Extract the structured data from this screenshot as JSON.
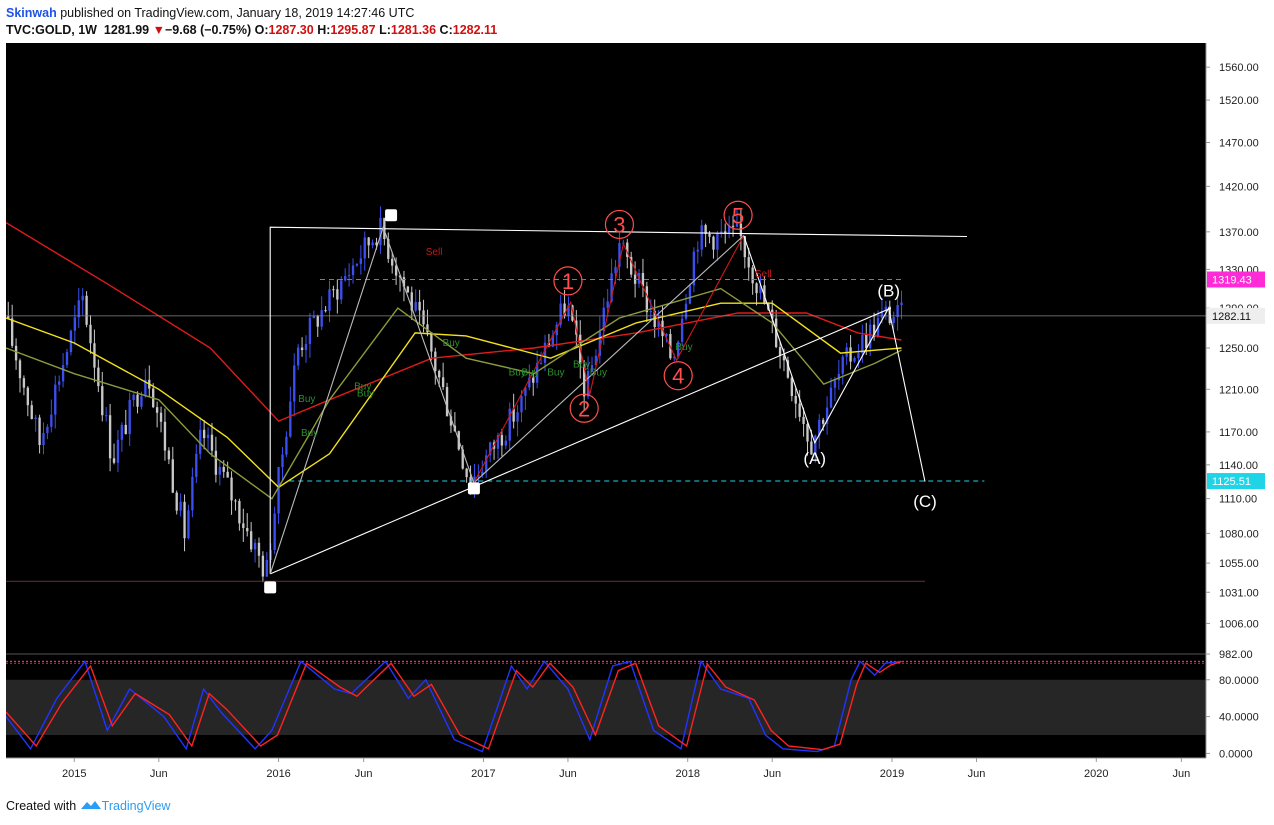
{
  "header": {
    "author": "Skinwah",
    "published_text": "published on TradingView.com, January 18, 2019 14:27:46 UTC",
    "symbol": "TVC:GOLD, 1W",
    "last": "1281.99",
    "change": "−9.68 (−0.75%)",
    "open_label": "O:",
    "open": "1287.30",
    "high_label": "H:",
    "high": "1295.87",
    "low_label": "L:",
    "low": "1281.36",
    "close_label": "C:",
    "close": "1282.11"
  },
  "footer": {
    "created_with": "Created with",
    "brand": "TradingView"
  },
  "colors": {
    "background": "#000000",
    "candle_up": "#3b4ff0",
    "candle_down": "#c8c8c8",
    "ma_red": "#e01b1b",
    "ma_yellow": "#f2e21c",
    "ma_olive": "#8d9a3c",
    "wave_red": "#ff4d4d",
    "resistance": "#ff2bd6",
    "support": "#20d4e8",
    "stoch_k": "#2233ff",
    "stoch_d": "#ff2222"
  },
  "chart_data": [
    {
      "type": "candlestick",
      "symbol": "TVC:GOLD",
      "interval": "1W",
      "scale": "log",
      "ylim": [
        982,
        1590
      ],
      "y_ticks": [
        1560,
        1520,
        1470,
        1420,
        1370,
        1330,
        1290,
        1250,
        1210,
        1170,
        1140,
        1110,
        1080,
        1055,
        1031,
        1006,
        982
      ],
      "y_tick_labels": [
        "1560.00",
        "1520.00",
        "1470.00",
        "1420.00",
        "1370.00",
        "1330.00",
        "1290.00",
        "1250.00",
        "1210.00",
        "1170.00",
        "1140.00",
        "1110.00",
        "1080.00",
        "1055.00",
        "1031.00",
        "1006.00",
        "982.00"
      ],
      "xlim": [
        "2014-09-01",
        "2020-07-15"
      ],
      "x_ticks": [
        {
          "date": "2015-01-01",
          "label": "2015"
        },
        {
          "date": "2015-06-01",
          "label": "Jun"
        },
        {
          "date": "2016-01-01",
          "label": "2016"
        },
        {
          "date": "2016-06-01",
          "label": "Jun"
        },
        {
          "date": "2017-01-01",
          "label": "2017"
        },
        {
          "date": "2017-06-01",
          "label": "Jun"
        },
        {
          "date": "2018-01-01",
          "label": "2018"
        },
        {
          "date": "2018-06-01",
          "label": "Jun"
        },
        {
          "date": "2019-01-01",
          "label": "2019"
        },
        {
          "date": "2019-06-01",
          "label": "Jun"
        },
        {
          "date": "2020-01-01",
          "label": "2020"
        },
        {
          "date": "2020-06-01",
          "label": "Jun"
        }
      ],
      "price_path": [
        [
          "2014-09-01",
          1290
        ],
        [
          "2014-11-07",
          1160
        ],
        [
          "2015-01-23",
          1300
        ],
        [
          "2015-03-17",
          1145
        ],
        [
          "2015-05-18",
          1230
        ],
        [
          "2015-07-24",
          1080
        ],
        [
          "2015-08-24",
          1170
        ],
        [
          "2015-12-17",
          1046
        ],
        [
          "2016-02-11",
          1250
        ],
        [
          "2016-07-06",
          1375
        ],
        [
          "2016-10-04",
          1250
        ],
        [
          "2016-12-15",
          1124
        ],
        [
          "2017-03-15",
          1195
        ],
        [
          "2017-06-06",
          1296
        ],
        [
          "2017-07-10",
          1205
        ],
        [
          "2017-09-08",
          1357
        ],
        [
          "2017-12-12",
          1238
        ],
        [
          "2018-01-25",
          1365
        ],
        [
          "2018-04-11",
          1366
        ],
        [
          "2018-08-16",
          1160
        ],
        [
          "2018-10-15",
          1235
        ],
        [
          "2018-12-26",
          1284
        ],
        [
          "2019-01-18",
          1282
        ]
      ],
      "last_price": {
        "value": 1282.11,
        "label": "1282.11"
      },
      "levels": [
        {
          "name": "resistance",
          "value": 1319.43,
          "label": "1319.43",
          "color": "#ff2bd6",
          "start": "2016-03-15",
          "end": "2019-01-18"
        },
        {
          "name": "support",
          "value": 1125.51,
          "label": "1125.51",
          "color": "#20d4e8",
          "start": "2016-01-20",
          "end": "2019-06-15"
        },
        {
          "name": "base",
          "value": 1040,
          "color": "#6b3030",
          "start": "2014-09-01",
          "end": "2019-03-01"
        }
      ],
      "moving_averages": [
        {
          "color": "#e01b1b",
          "points": [
            [
              "2014-09-01",
              1380
            ],
            [
              "2015-03-01",
              1315
            ],
            [
              "2015-09-01",
              1250
            ],
            [
              "2016-01-01",
              1180
            ],
            [
              "2016-04-01",
              1200
            ],
            [
              "2016-10-01",
              1240
            ],
            [
              "2017-04-01",
              1250
            ],
            [
              "2017-10-01",
              1265
            ],
            [
              "2018-04-01",
              1285
            ],
            [
              "2018-08-01",
              1285
            ],
            [
              "2018-11-01",
              1265
            ],
            [
              "2019-01-18",
              1258
            ]
          ]
        },
        {
          "color": "#f2e21c",
          "points": [
            [
              "2014-09-01",
              1280
            ],
            [
              "2015-01-01",
              1255
            ],
            [
              "2015-06-01",
              1210
            ],
            [
              "2015-10-01",
              1165
            ],
            [
              "2016-01-01",
              1120
            ],
            [
              "2016-04-01",
              1150
            ],
            [
              "2016-09-01",
              1265
            ],
            [
              "2016-12-01",
              1262
            ],
            [
              "2017-05-01",
              1240
            ],
            [
              "2017-10-01",
              1275
            ],
            [
              "2018-03-01",
              1295
            ],
            [
              "2018-06-01",
              1295
            ],
            [
              "2018-10-01",
              1245
            ],
            [
              "2019-01-18",
              1250
            ]
          ]
        },
        {
          "color": "#8d9a3c",
          "points": [
            [
              "2014-09-01",
              1250
            ],
            [
              "2015-01-01",
              1225
            ],
            [
              "2015-06-01",
              1200
            ],
            [
              "2015-09-01",
              1150
            ],
            [
              "2015-12-20",
              1110
            ],
            [
              "2016-04-01",
              1200
            ],
            [
              "2016-08-01",
              1290
            ],
            [
              "2016-12-01",
              1240
            ],
            [
              "2017-04-01",
              1225
            ],
            [
              "2017-09-01",
              1280
            ],
            [
              "2018-03-01",
              1310
            ],
            [
              "2018-06-01",
              1275
            ],
            [
              "2018-09-01",
              1215
            ],
            [
              "2018-12-01",
              1235
            ],
            [
              "2019-01-18",
              1248
            ]
          ]
        }
      ],
      "pattern_lines": [
        {
          "color": "#ffffff",
          "points": [
            [
              "2015-12-17",
              1046
            ],
            [
              "2015-12-17",
              1375
            ],
            [
              "2019-05-15",
              1365
            ]
          ]
        },
        {
          "color": "#ffffff",
          "points": [
            [
              "2015-12-17",
              1046
            ],
            [
              "2018-12-30",
              1290
            ]
          ]
        },
        {
          "color": "#bbbbbb",
          "points": [
            [
              "2015-12-17",
              1046
            ],
            [
              "2016-07-06",
              1375
            ],
            [
              "2016-12-15",
              1124
            ],
            [
              "2018-04-11",
              1366
            ]
          ]
        },
        {
          "color": "#d01818",
          "points": [
            [
              "2016-12-15",
              1124
            ],
            [
              "2017-06-06",
              1296
            ],
            [
              "2017-07-10",
              1205
            ],
            [
              "2017-09-08",
              1357
            ],
            [
              "2017-12-12",
              1238
            ],
            [
              "2018-04-11",
              1366
            ]
          ]
        },
        {
          "color": "#ffffff",
          "points": [
            [
              "2018-04-11",
              1366
            ],
            [
              "2018-08-16",
              1160
            ],
            [
              "2018-12-26",
              1290
            ],
            [
              "2019-03-01",
              1125
            ]
          ]
        }
      ],
      "square_markers": [
        {
          "date": "2015-12-17",
          "value": 1035
        },
        {
          "date": "2016-07-20",
          "value": 1388
        },
        {
          "date": "2016-12-15",
          "value": 1119
        }
      ],
      "wave_labels": [
        {
          "label": "1",
          "date": "2017-06-01",
          "value": 1318,
          "circled": true,
          "color": "#ff4d4d"
        },
        {
          "label": "2",
          "date": "2017-06-30",
          "value": 1192,
          "circled": true,
          "color": "#ff4d4d"
        },
        {
          "label": "3",
          "date": "2017-09-01",
          "value": 1378,
          "circled": true,
          "color": "#ff4d4d"
        },
        {
          "label": "4",
          "date": "2017-12-15",
          "value": 1223,
          "circled": true,
          "color": "#ff4d4d"
        },
        {
          "label": "5",
          "date": "2018-04-01",
          "value": 1388,
          "circled": true,
          "color": "#ff4d4d"
        },
        {
          "label": "(A)",
          "date": "2018-08-16",
          "value": 1146,
          "circled": false,
          "color": "#ffffff"
        },
        {
          "label": "(B)",
          "date": "2018-12-26",
          "value": 1308,
          "circled": false,
          "color": "#ffffff"
        },
        {
          "label": "(C)",
          "date": "2019-03-01",
          "value": 1108,
          "circled": false,
          "color": "#ffffff"
        }
      ],
      "signals": [
        {
          "label": "Sell",
          "date": "2016-09-20",
          "value": 1345,
          "color": "#c81818"
        },
        {
          "label": "Sell",
          "date": "2018-05-01",
          "value": 1322,
          "color": "#c81818"
        },
        {
          "label": "Buy",
          "date": "2016-02-05",
          "value": 1198,
          "color": "#2f8f2f"
        },
        {
          "label": "Buy",
          "date": "2016-02-10",
          "value": 1166,
          "color": "#2f8f2f"
        },
        {
          "label": "Buy",
          "date": "2016-05-15",
          "value": 1210,
          "color": "#2f8f2f"
        },
        {
          "label": "Buy",
          "date": "2016-05-20",
          "value": 1203,
          "color": "#2f8f2f"
        },
        {
          "label": "Buy",
          "date": "2016-10-20",
          "value": 1252,
          "color": "#2f8f2f"
        },
        {
          "label": "Buy",
          "date": "2017-02-15",
          "value": 1223,
          "color": "#2f8f2f"
        },
        {
          "label": "Buy",
          "date": "2017-03-10",
          "value": 1223,
          "color": "#2f8f2f"
        },
        {
          "label": "Buy",
          "date": "2017-04-25",
          "value": 1223,
          "color": "#2f8f2f"
        },
        {
          "label": "Buy",
          "date": "2017-06-10",
          "value": 1231,
          "color": "#2f8f2f"
        },
        {
          "label": "Buy",
          "date": "2017-07-10",
          "value": 1223,
          "color": "#2f8f2f"
        },
        {
          "label": "Buy",
          "date": "2017-12-10",
          "value": 1248,
          "color": "#2f8f2f"
        }
      ]
    },
    {
      "type": "line",
      "name": "stochastic",
      "ylim": [
        -5,
        108
      ],
      "y_ticks": [
        80,
        40,
        0
      ],
      "y_tick_labels": [
        "80.0000",
        "40.0000",
        "0.0000"
      ],
      "band": [
        20,
        80
      ],
      "overbought_lines": [
        100,
        98
      ],
      "series": [
        {
          "color": "#2233ff",
          "points": [
            [
              "2014-09-01",
              40
            ],
            [
              "2014-10-15",
              5
            ],
            [
              "2014-12-01",
              60
            ],
            [
              "2015-01-20",
              100
            ],
            [
              "2015-03-01",
              25
            ],
            [
              "2015-04-10",
              70
            ],
            [
              "2015-06-10",
              40
            ],
            [
              "2015-07-20",
              5
            ],
            [
              "2015-08-20",
              70
            ],
            [
              "2015-09-20",
              45
            ],
            [
              "2015-11-20",
              5
            ],
            [
              "2015-12-20",
              25
            ],
            [
              "2016-02-10",
              100
            ],
            [
              "2016-04-10",
              70
            ],
            [
              "2016-05-10",
              65
            ],
            [
              "2016-07-10",
              100
            ],
            [
              "2016-08-20",
              60
            ],
            [
              "2016-09-20",
              80
            ],
            [
              "2016-11-10",
              15
            ],
            [
              "2016-12-30",
              2
            ],
            [
              "2017-02-20",
              95
            ],
            [
              "2017-03-20",
              70
            ],
            [
              "2017-04-20",
              100
            ],
            [
              "2017-06-01",
              70
            ],
            [
              "2017-07-10",
              15
            ],
            [
              "2017-08-20",
              95
            ],
            [
              "2017-09-20",
              100
            ],
            [
              "2017-11-01",
              25
            ],
            [
              "2017-12-20",
              5
            ],
            [
              "2018-01-25",
              100
            ],
            [
              "2018-03-01",
              70
            ],
            [
              "2018-04-20",
              60
            ],
            [
              "2018-05-20",
              20
            ],
            [
              "2018-06-20",
              5
            ],
            [
              "2018-08-20",
              2
            ],
            [
              "2018-09-20",
              8
            ],
            [
              "2018-10-20",
              80
            ],
            [
              "2018-11-05",
              100
            ],
            [
              "2018-12-01",
              85
            ],
            [
              "2018-12-20",
              98
            ],
            [
              "2019-01-18",
              100
            ]
          ]
        },
        {
          "color": "#ff2222",
          "points": [
            [
              "2014-09-01",
              45
            ],
            [
              "2014-10-25",
              8
            ],
            [
              "2014-12-10",
              55
            ],
            [
              "2015-01-30",
              95
            ],
            [
              "2015-03-10",
              30
            ],
            [
              "2015-04-20",
              65
            ],
            [
              "2015-06-20",
              42
            ],
            [
              "2015-07-30",
              8
            ],
            [
              "2015-08-30",
              65
            ],
            [
              "2015-09-30",
              48
            ],
            [
              "2015-11-30",
              8
            ],
            [
              "2015-12-30",
              20
            ],
            [
              "2016-02-20",
              98
            ],
            [
              "2016-04-20",
              72
            ],
            [
              "2016-05-20",
              62
            ],
            [
              "2016-07-20",
              98
            ],
            [
              "2016-08-30",
              62
            ],
            [
              "2016-09-30",
              75
            ],
            [
              "2016-11-20",
              20
            ],
            [
              "2017-01-10",
              5
            ],
            [
              "2017-03-01",
              90
            ],
            [
              "2017-03-30",
              72
            ],
            [
              "2017-04-30",
              98
            ],
            [
              "2017-06-10",
              72
            ],
            [
              "2017-07-20",
              20
            ],
            [
              "2017-08-30",
              90
            ],
            [
              "2017-09-30",
              98
            ],
            [
              "2017-11-10",
              30
            ],
            [
              "2017-12-30",
              8
            ],
            [
              "2018-02-05",
              97
            ],
            [
              "2018-03-10",
              72
            ],
            [
              "2018-04-30",
              58
            ],
            [
              "2018-05-30",
              25
            ],
            [
              "2018-06-30",
              8
            ],
            [
              "2018-08-30",
              4
            ],
            [
              "2018-09-30",
              10
            ],
            [
              "2018-10-30",
              75
            ],
            [
              "2018-11-15",
              98
            ],
            [
              "2018-12-10",
              88
            ],
            [
              "2018-12-30",
              96
            ],
            [
              "2019-01-18",
              100
            ]
          ]
        }
      ]
    }
  ]
}
